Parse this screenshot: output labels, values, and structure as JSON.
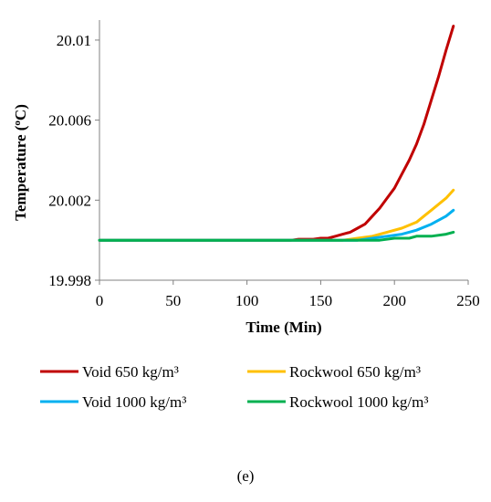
{
  "chart_data": {
    "type": "line",
    "title": "",
    "xlabel": "Time (Min)",
    "ylabel_main": "Temperature (",
    "ylabel_sup": "o",
    "ylabel_end": "C)",
    "xlim": [
      0,
      250
    ],
    "ylim": [
      19.998,
      20.011
    ],
    "x_ticks": [
      0,
      50,
      100,
      150,
      200,
      250
    ],
    "x_tick_labels": [
      "0",
      "50",
      "100",
      "150",
      "200",
      "250"
    ],
    "y_ticks": [
      19.998,
      20.002,
      20.006,
      20.01
    ],
    "y_tick_labels": [
      "19.998",
      "20.002",
      "20.006",
      "20.01"
    ],
    "grid": false,
    "legend_position": "bottom",
    "series": [
      {
        "name": "Void 650 kg/m³",
        "color": "#C00000",
        "x": [
          0,
          130,
          135,
          140,
          145,
          150,
          155,
          160,
          165,
          170,
          175,
          180,
          185,
          190,
          195,
          200,
          205,
          210,
          215,
          220,
          225,
          230,
          235,
          240
        ],
        "y": [
          20.0,
          20.0,
          20.00005,
          20.00005,
          20.00005,
          20.0001,
          20.0001,
          20.0002,
          20.0003,
          20.0004,
          20.0006,
          20.0008,
          20.0012,
          20.0016,
          20.0021,
          20.0026,
          20.0033,
          20.004,
          20.0048,
          20.0058,
          20.007,
          20.0082,
          20.0095,
          20.0107
        ]
      },
      {
        "name": "Rockwool 650 kg/m³",
        "color": "#FFC000",
        "x": [
          0,
          165,
          175,
          185,
          195,
          205,
          215,
          220,
          225,
          230,
          235,
          240
        ],
        "y": [
          20.0,
          20.0,
          20.0001,
          20.0002,
          20.0004,
          20.0006,
          20.0009,
          20.0012,
          20.0015,
          20.0018,
          20.0021,
          20.0025
        ]
      },
      {
        "name": "Void 1000 kg/m³",
        "color": "#00B0F0",
        "x": [
          0,
          175,
          185,
          195,
          205,
          215,
          225,
          230,
          235,
          240
        ],
        "y": [
          20.0,
          20.0,
          20.0001,
          20.0002,
          20.0003,
          20.0005,
          20.0008,
          20.001,
          20.0012,
          20.0015
        ]
      },
      {
        "name": "Rockwool 1000 kg/m³",
        "color": "#00B050",
        "x": [
          0,
          190,
          200,
          210,
          215,
          225,
          235,
          240
        ],
        "y": [
          20.0,
          20.0,
          20.0001,
          20.0001,
          20.0002,
          20.0002,
          20.0003,
          20.0004
        ]
      }
    ]
  },
  "caption": "(e)"
}
